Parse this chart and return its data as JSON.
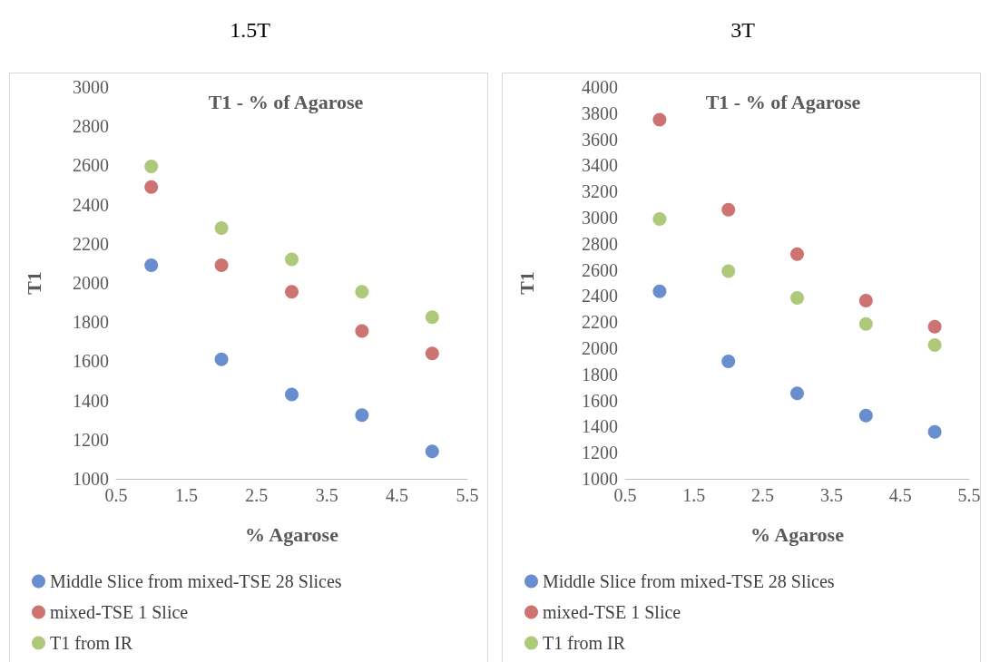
{
  "chart_data": [
    {
      "type": "scatter",
      "title": "1.5T",
      "subtitle": "T1 - % of Agarose",
      "xlabel": "% Agarose",
      "ylabel": "T1",
      "x": [
        1,
        2,
        3,
        4,
        5
      ],
      "xlim": [
        0.5,
        5.5
      ],
      "xticks": [
        0.5,
        1.5,
        2.5,
        3.5,
        4.5,
        5.5
      ],
      "ylim": [
        1000,
        3000
      ],
      "yticks": [
        1000,
        1200,
        1400,
        1600,
        1800,
        2000,
        2200,
        2400,
        2600,
        2800,
        3000
      ],
      "grid": false,
      "legend": "bottom",
      "marker": "circle",
      "series": [
        {
          "name": "Middle Slice from mixed-TSE 28 Slices",
          "color": "#4472c4",
          "values": [
            2090,
            1610,
            1430,
            1325,
            1140
          ]
        },
        {
          "name": "mixed-TSE 1 Slice",
          "color": "#c0504d",
          "values": [
            2490,
            2090,
            1955,
            1755,
            1640
          ]
        },
        {
          "name": "T1 from IR",
          "color": "#9bbb59",
          "values": [
            2595,
            2280,
            2120,
            1955,
            1825
          ]
        }
      ]
    },
    {
      "type": "scatter",
      "title": "3T",
      "subtitle": "T1 - % of Agarose",
      "xlabel": "% Agarose",
      "ylabel": "T1",
      "x": [
        1,
        2,
        3,
        4,
        5
      ],
      "xlim": [
        0.5,
        5.5
      ],
      "xticks": [
        0.5,
        1.5,
        2.5,
        3.5,
        4.5,
        5.5
      ],
      "ylim": [
        1000,
        4000
      ],
      "yticks": [
        1000,
        1200,
        1400,
        1600,
        1800,
        2000,
        2200,
        2400,
        2600,
        2800,
        3000,
        3200,
        3400,
        3600,
        3800,
        4000
      ],
      "grid": false,
      "legend": "bottom",
      "marker": "circle",
      "series": [
        {
          "name": "Middle Slice from mixed-TSE 28 Slices",
          "color": "#4472c4",
          "values": [
            2435,
            1900,
            1655,
            1485,
            1360
          ]
        },
        {
          "name": "mixed-TSE 1 Slice",
          "color": "#c0504d",
          "values": [
            3750,
            3060,
            2720,
            2365,
            2165
          ]
        },
        {
          "name": "T1 from IR",
          "color": "#9bbb59",
          "values": [
            2990,
            2590,
            2385,
            2185,
            2025
          ]
        }
      ]
    }
  ]
}
